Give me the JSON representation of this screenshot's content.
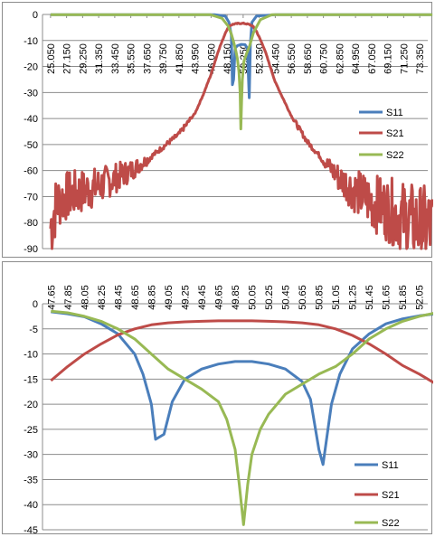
{
  "colors": {
    "S11": "#4a7ebb",
    "S21": "#be4b48",
    "S22": "#98b954",
    "grid": "#8c8c8c",
    "axis": "#8c8c8c",
    "shade": "#b3a2d0"
  },
  "chart_data": [
    {
      "type": "line",
      "xlabel": "",
      "ylabel": "",
      "ylim": [
        -90,
        0
      ],
      "yticks": [
        0,
        -10,
        -20,
        -30,
        -40,
        -50,
        -60,
        -70,
        -80,
        -90
      ],
      "xlim": [
        25.05,
        75.0
      ],
      "xticks": [
        "25.050",
        "27.150",
        "29.250",
        "31.350",
        "33.450",
        "35.550",
        "37.650",
        "39.750",
        "41.850",
        "43.950",
        "46.050",
        "48.150",
        "50.250",
        "52.350",
        "54.450",
        "56.550",
        "58.650",
        "60.750",
        "62.850",
        "64.950",
        "67.050",
        "69.150",
        "71.250",
        "73.350"
      ],
      "xaxis_position": "top",
      "xtick_rotation": "vertical",
      "grid": "horizontal",
      "legend": "right",
      "series": [
        {
          "name": "S11",
          "x": [
            25.05,
            46.5,
            47.9,
            48.4,
            48.7,
            48.85,
            49.0,
            49.2,
            49.5,
            50.0,
            50.5,
            50.8,
            51.05,
            51.2,
            51.4,
            52.0,
            54.5,
            75.0
          ],
          "values": [
            -0.1,
            -0.1,
            -0.6,
            -3,
            -8,
            -27,
            -25,
            -13,
            -12,
            -11.5,
            -11.6,
            -13,
            -32,
            -11,
            -3,
            -0.6,
            -0.1,
            -0.1
          ]
        },
        {
          "name": "S21",
          "x": [
            25.05,
            25.5,
            26.0,
            27.0,
            28.0,
            29.25,
            31.35,
            33.45,
            35.55,
            37.65,
            39.75,
            41.85,
            43.95,
            45.0,
            46.05,
            47.0,
            48.0,
            48.5,
            49.0,
            49.5,
            50.0,
            50.5,
            51.0,
            51.5,
            52.0,
            53.0,
            54.45,
            56.55,
            58.65,
            60.75,
            62.85,
            64.95,
            67.05,
            69.15,
            71.25,
            73.35,
            75.0
          ],
          "values": [
            -82,
            -76,
            -72,
            -70,
            -69,
            -68,
            -66,
            -63,
            -60,
            -56,
            -51,
            -46,
            -38,
            -31,
            -23,
            -14,
            -6.5,
            -4.3,
            -3.7,
            -3.5,
            -3.4,
            -3.5,
            -3.8,
            -4.5,
            -6.5,
            -13,
            -26,
            -39,
            -49,
            -56,
            -63,
            -68,
            -72,
            -75,
            -78,
            -81,
            -82
          ]
        },
        {
          "name": "S22",
          "x": [
            25.05,
            46.0,
            47.5,
            48.3,
            48.7,
            49.05,
            49.3,
            49.5,
            49.7,
            49.85,
            49.95,
            50.05,
            50.15,
            50.35,
            50.7,
            51.1,
            51.6,
            52.5,
            54.0,
            75.0
          ],
          "values": [
            -0.1,
            -0.1,
            -1.5,
            -4.5,
            -7.5,
            -11,
            -14,
            -17,
            -22,
            -30,
            -44,
            -33,
            -25,
            -18,
            -15,
            -12,
            -7,
            -2,
            -0.1,
            -0.1
          ]
        }
      ]
    },
    {
      "type": "line",
      "xlabel": "",
      "ylabel": "",
      "ylim": [
        -45,
        0
      ],
      "yticks": [
        0,
        -5,
        -10,
        -15,
        -20,
        -25,
        -30,
        -35,
        -40,
        -45
      ],
      "xlim": [
        47.65,
        52.25
      ],
      "xticks": [
        "47.65",
        "47.85",
        "48.05",
        "48.25",
        "48.45",
        "48.65",
        "48.85",
        "49.05",
        "49.25",
        "49.45",
        "49.65",
        "49.85",
        "50.05",
        "50.25",
        "50.45",
        "50.65",
        "50.85",
        "51.05",
        "51.25",
        "51.45",
        "51.65",
        "51.85",
        "52.05"
      ],
      "xaxis_position": "top",
      "xtick_rotation": "vertical",
      "grid": "horizontal",
      "legend": "right",
      "series": [
        {
          "name": "S11",
          "x": [
            47.65,
            47.85,
            48.05,
            48.25,
            48.45,
            48.65,
            48.75,
            48.85,
            48.9,
            49.0,
            49.1,
            49.25,
            49.45,
            49.65,
            49.85,
            50.05,
            50.25,
            50.45,
            50.65,
            50.75,
            50.85,
            50.9,
            51.0,
            51.1,
            51.25,
            51.45,
            51.65,
            51.85,
            52.05,
            52.25
          ],
          "values": [
            -1.6,
            -2.0,
            -2.6,
            -4,
            -6,
            -10,
            -14,
            -20,
            -27,
            -26,
            -19.5,
            -15,
            -13,
            -12,
            -11.5,
            -11.5,
            -12,
            -13,
            -15.5,
            -19,
            -29,
            -32,
            -20,
            -14,
            -9,
            -6,
            -4,
            -3,
            -2.4,
            -2.0
          ]
        },
        {
          "name": "S21",
          "x": [
            47.65,
            47.85,
            48.05,
            48.25,
            48.45,
            48.65,
            48.85,
            49.05,
            49.25,
            49.45,
            49.65,
            49.85,
            50.05,
            50.25,
            50.45,
            50.65,
            50.85,
            51.05,
            51.25,
            51.45,
            51.65,
            51.85,
            52.05,
            52.25
          ],
          "values": [
            -15.3,
            -12.5,
            -10,
            -8,
            -6.2,
            -5,
            -4.2,
            -3.8,
            -3.6,
            -3.5,
            -3.4,
            -3.4,
            -3.4,
            -3.5,
            -3.6,
            -3.8,
            -4.2,
            -5,
            -6.3,
            -8,
            -10,
            -12.3,
            -14,
            -16
          ]
        },
        {
          "name": "S22",
          "x": [
            47.65,
            47.85,
            48.05,
            48.25,
            48.45,
            48.65,
            48.85,
            49.05,
            49.25,
            49.45,
            49.65,
            49.75,
            49.85,
            49.9,
            49.95,
            50.0,
            50.05,
            50.15,
            50.25,
            50.45,
            50.65,
            50.85,
            51.05,
            51.25,
            51.45,
            51.65,
            51.85,
            52.05,
            52.25
          ],
          "values": [
            -1.5,
            -1.8,
            -2.5,
            -3.5,
            -5,
            -7,
            -10,
            -13,
            -15,
            -17,
            -19.5,
            -23,
            -29,
            -36,
            -44,
            -36,
            -30,
            -25,
            -22,
            -18,
            -16,
            -14,
            -12.5,
            -10,
            -7,
            -5,
            -3.5,
            -2.5,
            -1.8
          ]
        }
      ]
    }
  ]
}
